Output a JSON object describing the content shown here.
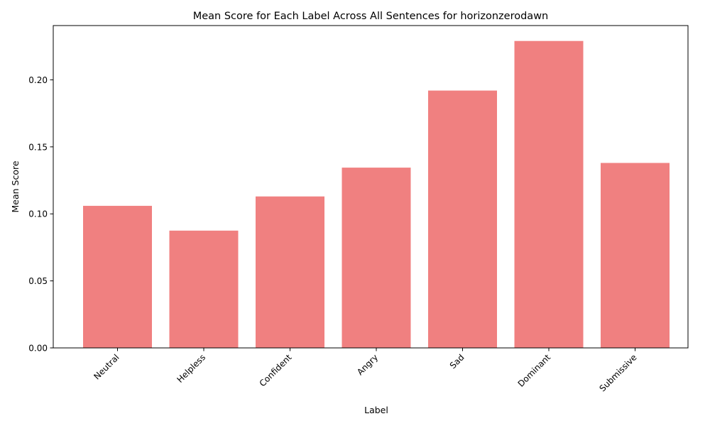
{
  "chart_data": {
    "type": "bar",
    "title": "Mean Score for Each Label Across All Sentences for horizonzerodawn",
    "xlabel": "Label",
    "ylabel": "Mean Score",
    "categories": [
      "Neutral",
      "Helpless",
      "Confident",
      "Angry",
      "Sad",
      "Dominant",
      "Submissive"
    ],
    "values": [
      0.106,
      0.0875,
      0.113,
      0.1345,
      0.192,
      0.229,
      0.138
    ],
    "ylim": [
      0,
      0.2405
    ],
    "yticks": [
      0.0,
      0.05,
      0.1,
      0.15,
      0.2
    ],
    "ytick_labels": [
      "0.00",
      "0.05",
      "0.10",
      "0.15",
      "0.20"
    ],
    "bar_color": "#f08080",
    "grid": false,
    "legend": "none"
  }
}
